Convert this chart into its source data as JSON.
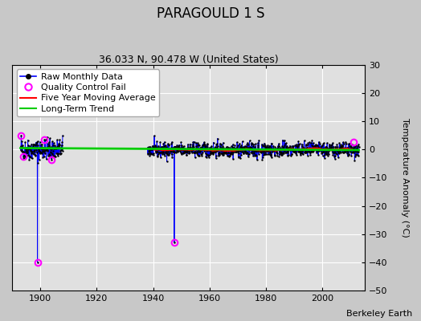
{
  "title": "PARAGOULD 1 S",
  "subtitle": "36.033 N, 90.478 W (United States)",
  "ylabel": "Temperature Anomaly (°C)",
  "credit": "Berkeley Earth",
  "xlim": [
    1890,
    2015
  ],
  "ylim": [
    -50,
    30
  ],
  "yticks": [
    -50,
    -40,
    -30,
    -20,
    -10,
    0,
    10,
    20,
    30
  ],
  "xticks": [
    1900,
    1920,
    1940,
    1960,
    1980,
    2000
  ],
  "bg_color": "#c8c8c8",
  "plot_bg_color": "#e0e0e0",
  "raw_color": "#0000ff",
  "qc_color": "#ff00ff",
  "mavg_color": "#ff0000",
  "trend_color": "#00cc00",
  "seed": 42,
  "start_year": 1893.0,
  "gap_start": 1908.0,
  "gap_end": 1938.0,
  "end_year": 2013.0,
  "early_std": 1.8,
  "main_std": 1.3,
  "main_mean": -0.1,
  "qc_fails": [
    {
      "year": 1893.25,
      "value": 5.0
    },
    {
      "year": 1894.0,
      "value": -2.5
    },
    {
      "year": 1899.0,
      "value": -40.0
    },
    {
      "year": 1901.5,
      "value": 3.5
    },
    {
      "year": 1904.0,
      "value": -3.5
    },
    {
      "year": 1947.5,
      "value": -33.0
    },
    {
      "year": 2011.0,
      "value": 2.5
    }
  ],
  "trend_y0": 0.5,
  "trend_y1": -0.2,
  "mavg_window": 60,
  "title_fontsize": 12,
  "subtitle_fontsize": 9,
  "tick_fontsize": 8,
  "legend_fontsize": 8,
  "credit_fontsize": 8
}
